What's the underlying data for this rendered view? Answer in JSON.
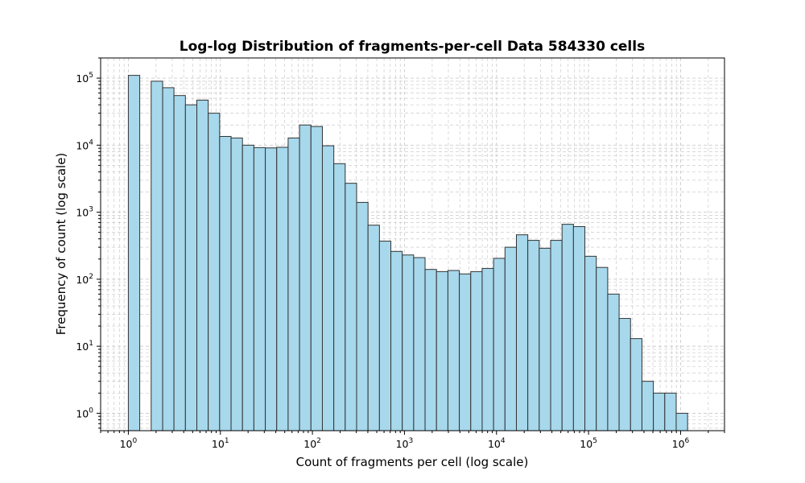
{
  "chart_data": {
    "type": "bar",
    "title": "Log-log Distribution of fragments-per-cell Data 584330 cells",
    "xlabel": "Count of fragments per cell (log scale)",
    "ylabel": "Frequency of count (log scale)",
    "xscale": "log",
    "yscale": "log",
    "xlim": [
      0.5,
      3000000
    ],
    "ylim": [
      0.55,
      200000
    ],
    "grid": true,
    "x_tick_labels": [
      {
        "value": 1,
        "base": "10",
        "exp": "0"
      },
      {
        "value": 10,
        "base": "10",
        "exp": "1"
      },
      {
        "value": 100,
        "base": "10",
        "exp": "2"
      },
      {
        "value": 1000,
        "base": "10",
        "exp": "3"
      },
      {
        "value": 10000,
        "base": "10",
        "exp": "4"
      },
      {
        "value": 100000,
        "base": "10",
        "exp": "5"
      },
      {
        "value": 1000000,
        "base": "10",
        "exp": "6"
      }
    ],
    "y_tick_labels": [
      {
        "value": 1,
        "base": "10",
        "exp": "0"
      },
      {
        "value": 10,
        "base": "10",
        "exp": "1"
      },
      {
        "value": 100,
        "base": "10",
        "exp": "2"
      },
      {
        "value": 1000,
        "base": "10",
        "exp": "3"
      },
      {
        "value": 10000,
        "base": "10",
        "exp": "4"
      },
      {
        "value": 100000,
        "base": "10",
        "exp": "5"
      }
    ],
    "bin_edges": [
      1.0,
      1.33,
      1.77,
      2.36,
      3.13,
      4.17,
      5.55,
      7.38,
      9.82,
      13.07,
      17.38,
      23.13,
      30.77,
      40.94,
      54.47,
      72.47,
      96.4,
      128.3,
      170.7,
      227.1,
      302.1,
      401.9,
      534.8,
      711.5,
      946.6,
      1259,
      1675,
      2229,
      2966,
      3946,
      5250,
      6985,
      9293,
      12364,
      16450,
      21886,
      29118,
      38741,
      51544,
      68577,
      91240,
      121391,
      161506,
      214878,
      285887,
      380363,
      506061,
      673297,
      895801,
      1191836,
      1585697
    ],
    "values": [
      110000,
      0,
      90000,
      72000,
      55000,
      40000,
      47000,
      30000,
      13500,
      12800,
      10000,
      9200,
      9100,
      9300,
      12800,
      20000,
      19000,
      9800,
      5300,
      2700,
      1400,
      640,
      370,
      260,
      230,
      210,
      140,
      130,
      135,
      120,
      130,
      145,
      205,
      300,
      460,
      380,
      290,
      380,
      660,
      610,
      220,
      150,
      60,
      26,
      13,
      3,
      2,
      2,
      1,
      0
    ],
    "colors": {
      "bar_fill": "#a7d8ec",
      "bar_edge": "#333333",
      "grid": "#cccccc"
    }
  }
}
